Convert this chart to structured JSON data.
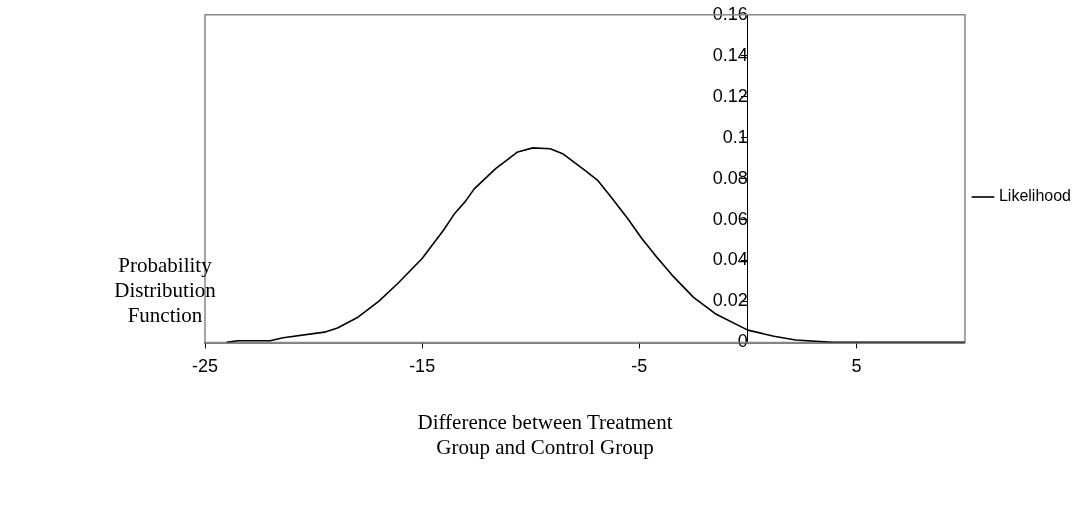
{
  "chart_data": {
    "type": "line",
    "xlabel": "Difference between Treatment Group and Control Group",
    "ylabel": "Probability Distribution Function",
    "x": [
      -24,
      -23.5,
      -22,
      -21.4,
      -19.5,
      -18.9,
      -18,
      -17,
      -16.1,
      -15,
      -14,
      -13.5,
      -13,
      -12.6,
      -11.6,
      -10.6,
      -9.9,
      -9.1,
      -8.5,
      -7.5,
      -6.9,
      -6.3,
      -5.5,
      -4.9,
      -4.3,
      -3.5,
      -2.5,
      -1.5,
      0,
      1.2,
      2.2,
      3.9,
      10
    ],
    "series": [
      {
        "name": "Likelihood",
        "color": "#000000",
        "values": [
          0,
          0.0008,
          0.0008,
          0.0023,
          0.005,
          0.007,
          0.012,
          0.02,
          0.029,
          0.041,
          0.055,
          0.063,
          0.069,
          0.075,
          0.085,
          0.093,
          0.095,
          0.0946,
          0.092,
          0.084,
          0.079,
          0.071,
          0.06,
          0.051,
          0.043,
          0.033,
          0.022,
          0.014,
          0.006,
          0.003,
          0.0012,
          0,
          0
        ]
      }
    ],
    "xlim": [
      -25,
      10
    ],
    "xticks": [
      -25,
      -15,
      -5,
      5
    ],
    "ylim": [
      0,
      0.16
    ],
    "yticks": [
      0,
      0.02,
      0.04,
      0.06,
      0.08,
      0.1,
      0.12,
      0.14,
      0.16
    ],
    "grid": false,
    "legend": "right",
    "marker": "none",
    "line_style": "solid"
  }
}
